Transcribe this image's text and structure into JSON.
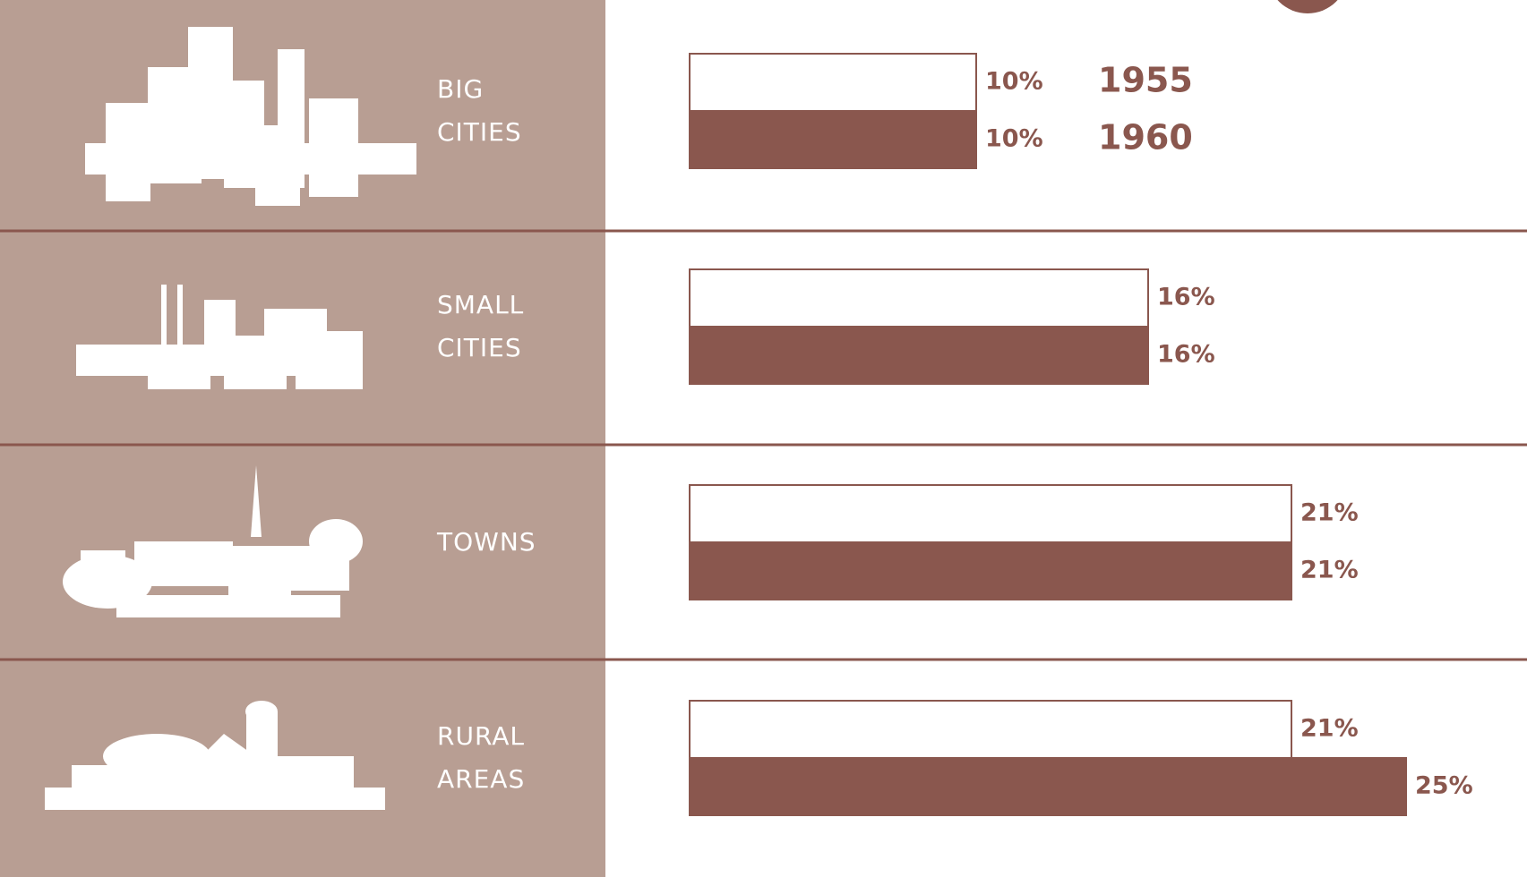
{
  "chart_data": {
    "type": "bar",
    "categories": [
      "BIG CITIES",
      "SMALL CITIES",
      "TOWNS",
      "RURAL AREAS"
    ],
    "series": [
      {
        "name": "1955",
        "color": "#ffffff",
        "values": [
          10,
          16,
          21,
          21
        ],
        "value_labels": [
          "10%",
          "16%",
          "21%",
          "21%"
        ]
      },
      {
        "name": "1960",
        "color": "#8a574e",
        "values": [
          10,
          16,
          21,
          25
        ],
        "value_labels": [
          "10%",
          "16%",
          "21%",
          "25%"
        ]
      }
    ]
  }
}
